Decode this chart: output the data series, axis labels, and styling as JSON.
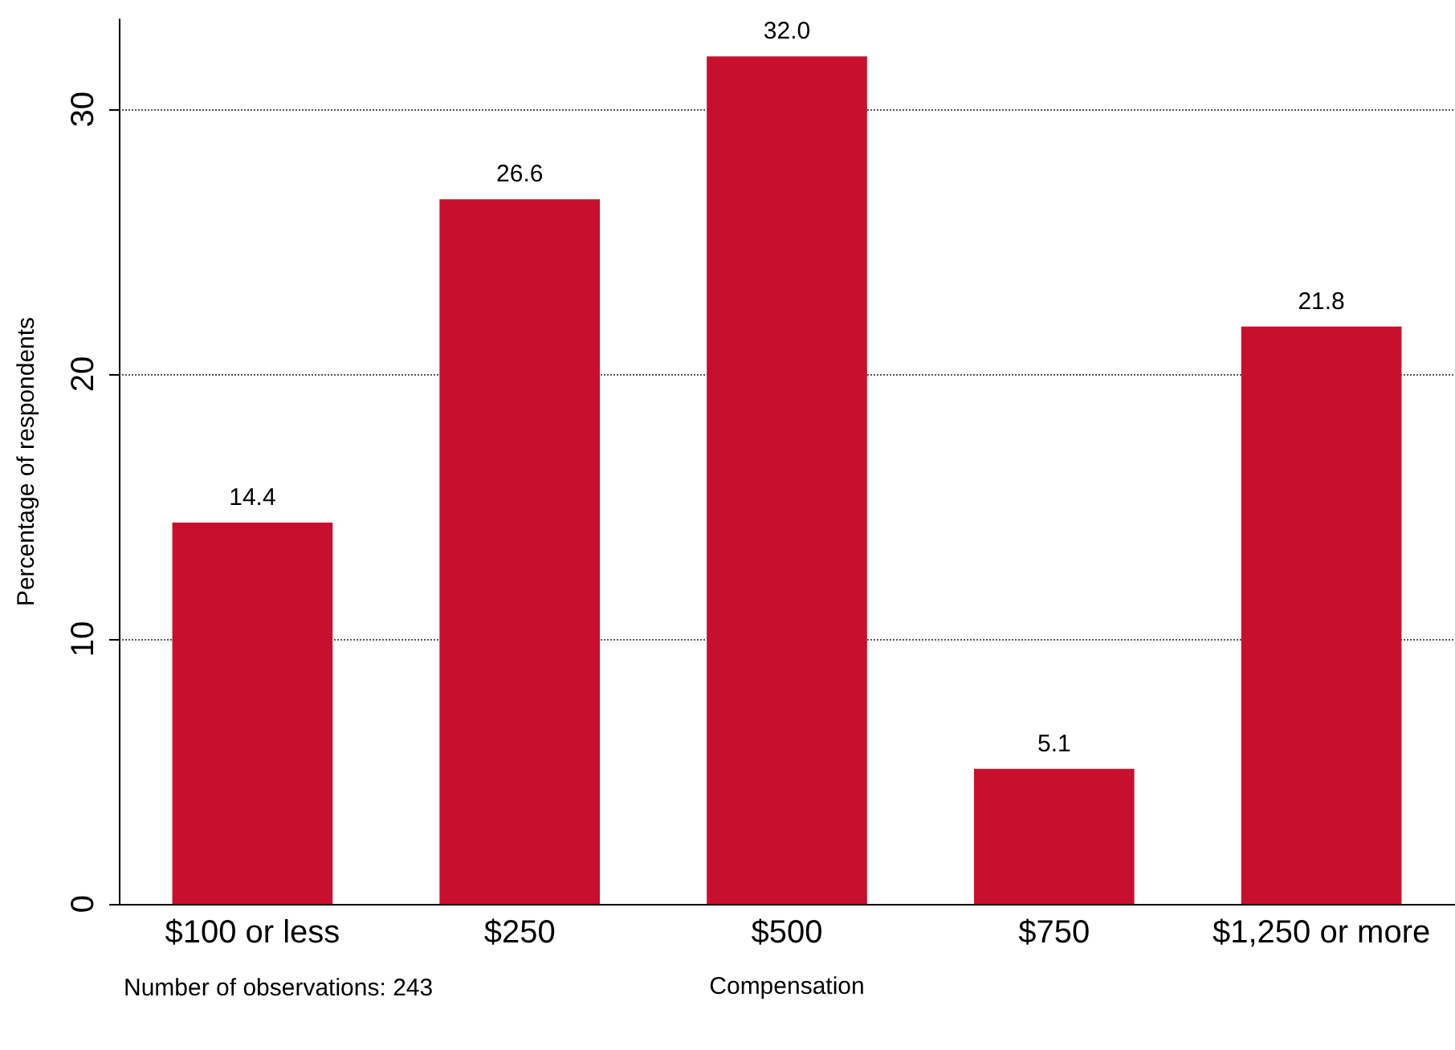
{
  "chart_data": {
    "type": "bar",
    "xlabel": "Compensation",
    "ylabel": "Percentage of respondents",
    "categories": [
      "$100 or less",
      "$250",
      "$500",
      "$750",
      "$1,250 or more"
    ],
    "values": [
      14.4,
      26.6,
      32.0,
      5.1,
      21.8
    ],
    "value_labels": [
      "14.4",
      "26.6",
      "32.0",
      "5.1",
      "21.8"
    ],
    "color": "#c8102e",
    "ylim": [
      0,
      33.4
    ],
    "yticks": [
      0,
      10,
      20,
      30
    ],
    "grid": "y",
    "annotations": [
      "Number of observations: 243"
    ]
  }
}
